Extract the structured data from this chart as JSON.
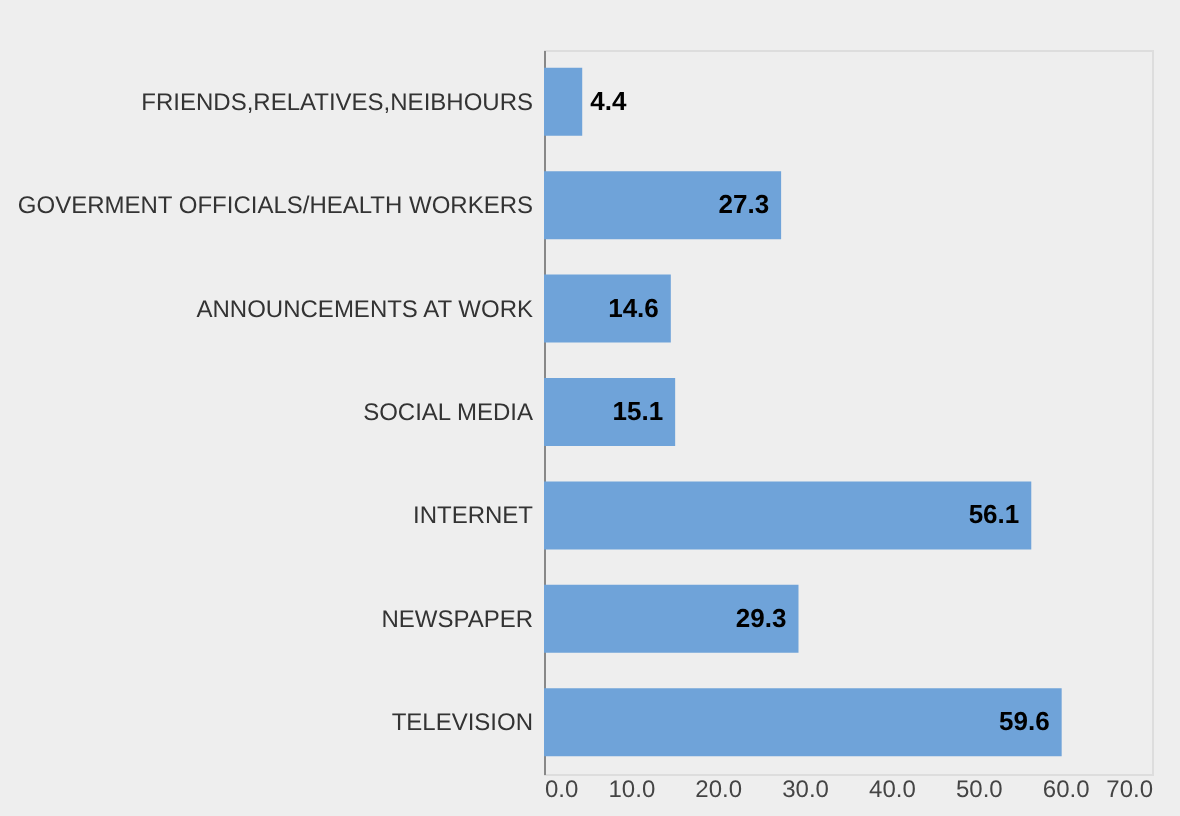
{
  "chart_data": {
    "type": "bar",
    "orientation": "horizontal",
    "categories": [
      "FRIENDS,RELATIVES,NEIBHOURS",
      "GOVERMENT OFFICIALS/HEALTH WORKERS",
      "ANNOUNCEMENTS AT WORK",
      "SOCIAL MEDIA",
      "INTERNET",
      "NEWSPAPER",
      "TELEVISION"
    ],
    "values": [
      4.4,
      27.3,
      14.6,
      15.1,
      56.1,
      29.3,
      59.6
    ],
    "color": "#6fa3d9",
    "xlim": [
      0,
      70
    ],
    "xticks": [
      {
        "value": 0,
        "label": "0.0"
      },
      {
        "value": 10,
        "label": "10.0"
      },
      {
        "value": 20,
        "label": "20.0"
      },
      {
        "value": 30,
        "label": "30.0"
      },
      {
        "value": 40,
        "label": "40.0"
      },
      {
        "value": 50,
        "label": "50.0"
      },
      {
        "value": 60,
        "label": "60.0"
      },
      {
        "value": 70,
        "label": "70.0"
      }
    ],
    "data_labels": true,
    "grid": false
  }
}
